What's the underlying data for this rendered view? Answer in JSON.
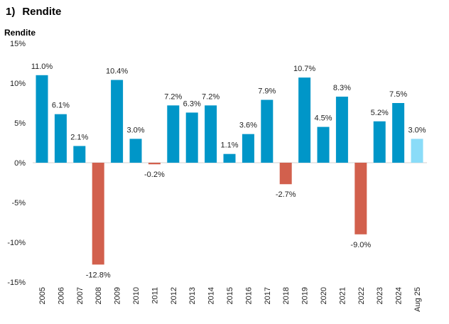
{
  "heading": {
    "number": "1)",
    "title": "Rendite"
  },
  "chart_data": {
    "type": "bar",
    "title": "Rendite",
    "ylabel": "Rendite",
    "xlabel": "",
    "ylim": [
      -15,
      15
    ],
    "yticks": [
      15,
      10,
      5,
      0,
      -5,
      -10,
      -15
    ],
    "ytick_labels": [
      "15%",
      "10%",
      "5%",
      "0%",
      "-5%",
      "-10%",
      "-15%"
    ],
    "grid": false,
    "categories": [
      "2005",
      "2006",
      "2007",
      "2008",
      "2009",
      "2010",
      "2011",
      "2012",
      "2013",
      "2014",
      "2015",
      "2016",
      "2017",
      "2018",
      "2019",
      "2020",
      "2021",
      "2022",
      "2023",
      "2024",
      "Aug 25"
    ],
    "values": [
      11.0,
      6.1,
      2.1,
      -12.8,
      10.4,
      3.0,
      -0.2,
      7.2,
      6.3,
      7.2,
      1.1,
      3.6,
      7.9,
      -2.7,
      10.7,
      4.5,
      8.3,
      -9.0,
      5.2,
      7.5,
      3.0
    ],
    "value_labels": [
      "11.0%",
      "6.1%",
      "2.1%",
      "-12.8%",
      "10.4%",
      "3.0%",
      "-0.2%",
      "7.2%",
      "6.3%",
      "7.2%",
      "1.1%",
      "3.6%",
      "7.9%",
      "-2.7%",
      "10.7%",
      "4.5%",
      "8.3%",
      "-9.0%",
      "5.2%",
      "7.5%",
      "3.0%"
    ],
    "colors": {
      "positive": "#0096C8",
      "negative": "#D2604D",
      "ytd": "#8ADCF8"
    }
  }
}
